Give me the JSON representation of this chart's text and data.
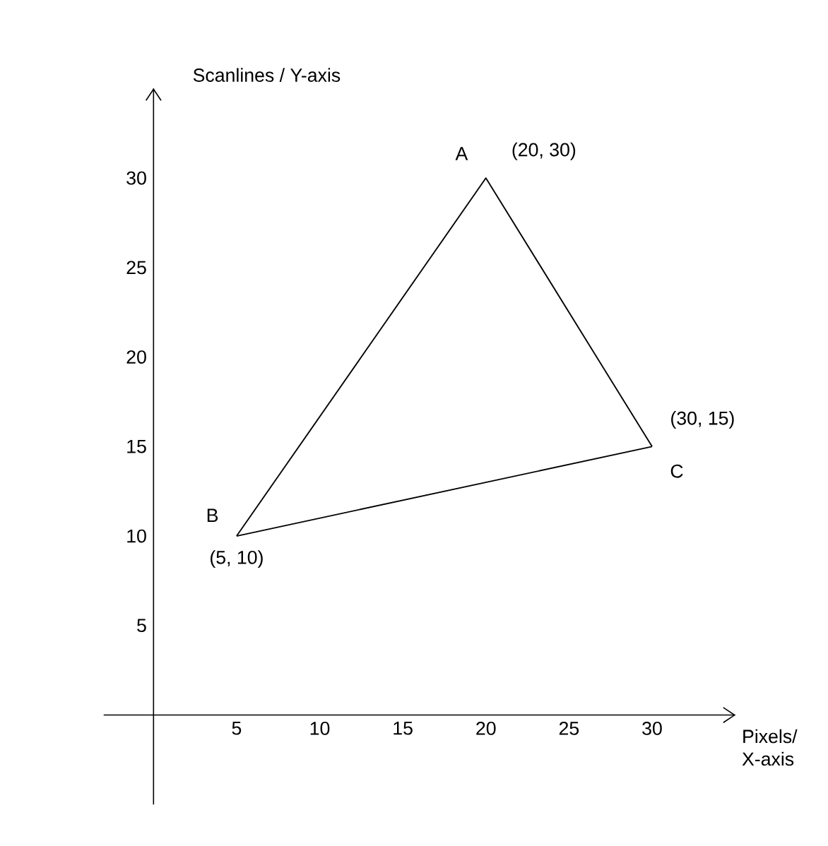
{
  "chart_data": {
    "type": "line",
    "xlabel": "Pixels/ X-axis",
    "ylabel": "Scanlines / Y-axis",
    "series": [
      {
        "color": "#000000",
        "x": [
          5,
          20,
          30
        ],
        "values": [
          10,
          30,
          15
        ]
      },
      {
        "color": "#000000",
        "x": [
          5,
          30
        ],
        "values": [
          10,
          15
        ]
      }
    ],
    "xlim": [
      -3,
      35
    ],
    "ylim": [
      -5,
      35
    ],
    "xticks": [
      5,
      10,
      15,
      20,
      25,
      30
    ],
    "yticks": [
      5,
      10,
      15,
      20,
      25,
      30
    ],
    "marker": "none",
    "grid": false,
    "annotations": [
      {
        "text": "A",
        "x": 20,
        "y": 30
      },
      {
        "text": "(20, 30)",
        "x": 20,
        "y": 30
      },
      {
        "text": "B",
        "x": 5,
        "y": 10
      },
      {
        "text": "(5, 10)",
        "x": 5,
        "y": 10
      },
      {
        "text": "C",
        "x": 30,
        "y": 15
      },
      {
        "text": "(30, 15)",
        "x": 30,
        "y": 15
      }
    ]
  }
}
